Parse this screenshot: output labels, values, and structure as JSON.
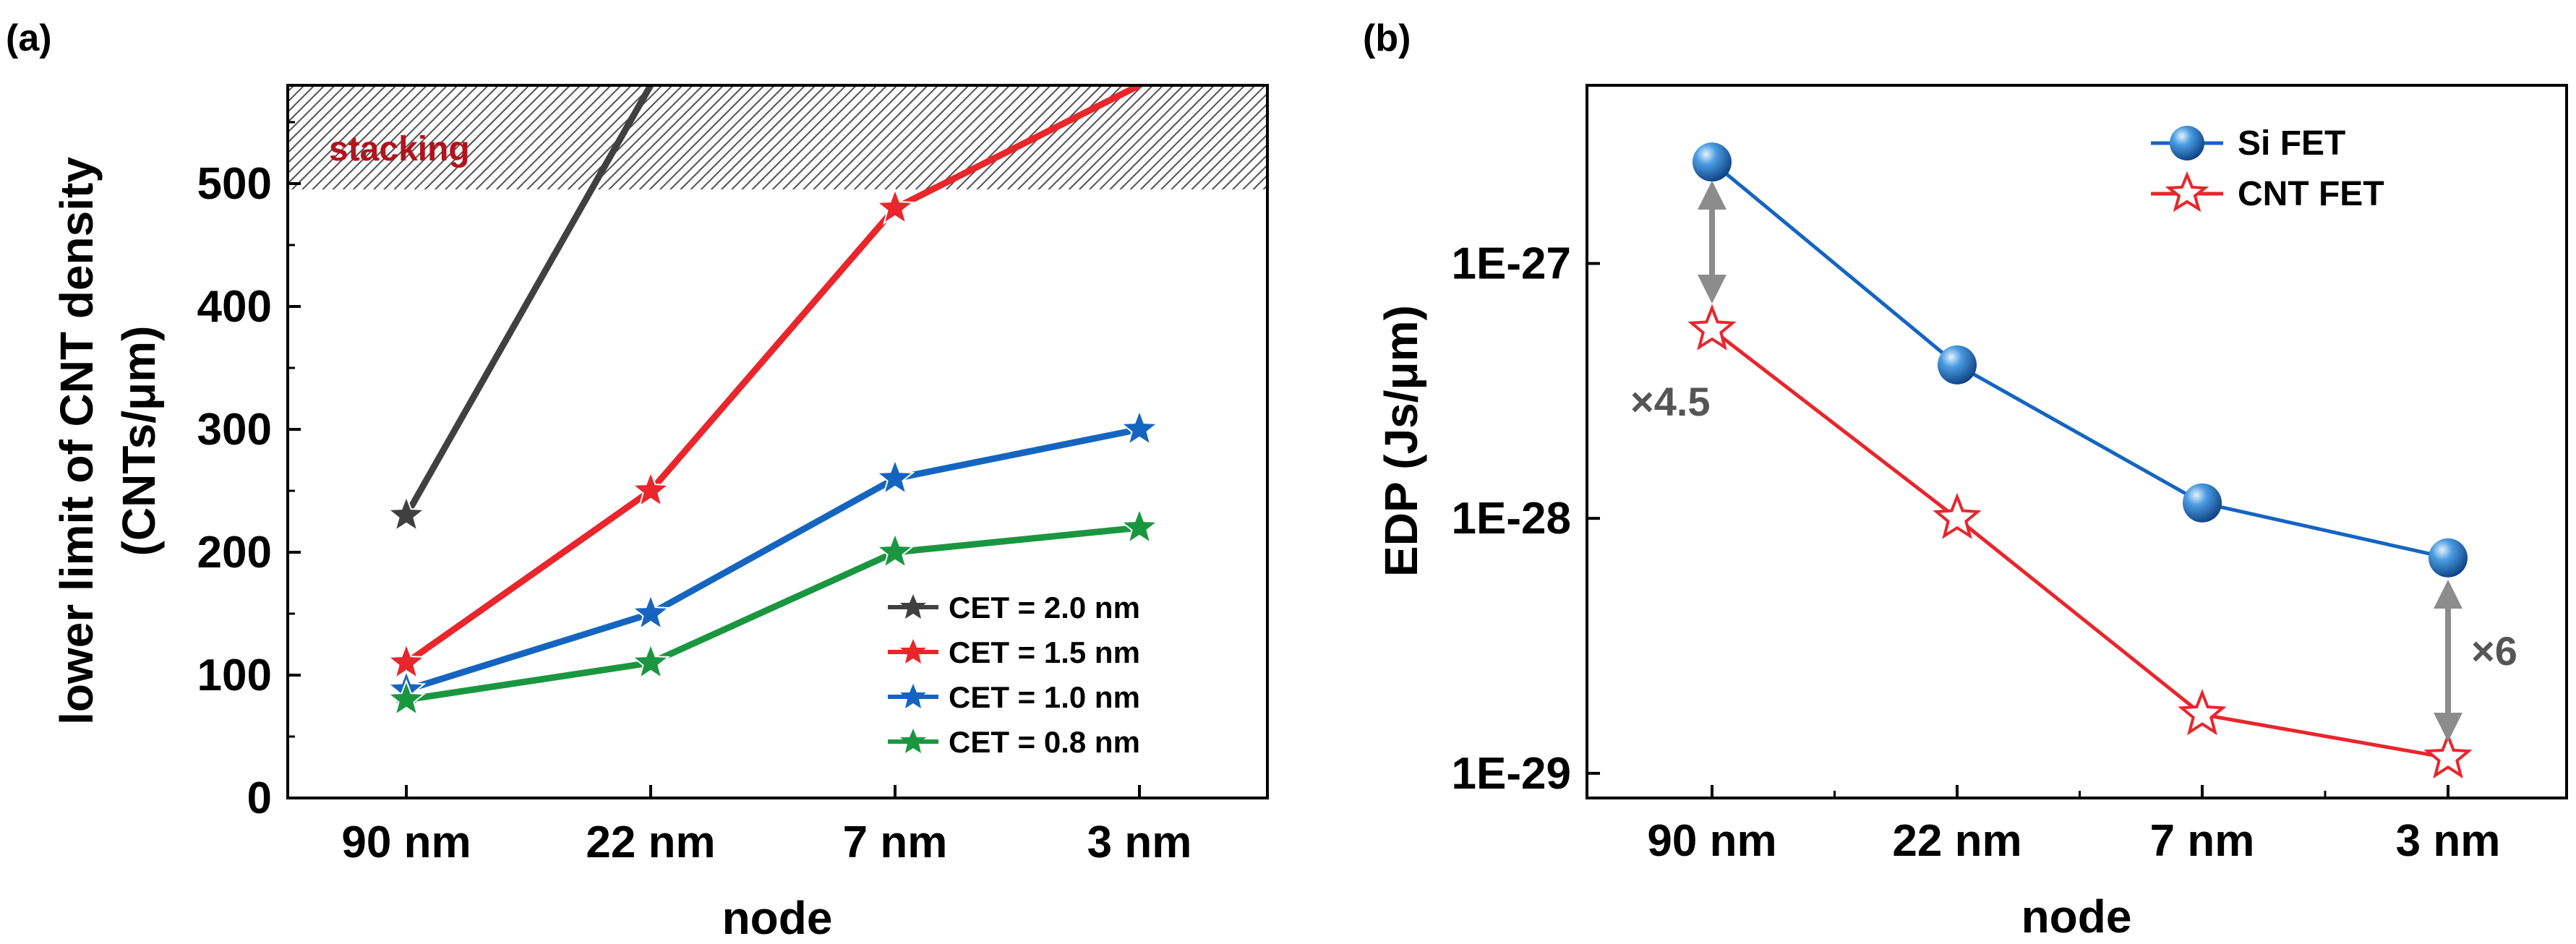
{
  "chart_data": [
    {
      "panel": "(a)",
      "type": "line",
      "xlabel": "node",
      "ylabel_line1": "lower limit of CNT density",
      "ylabel_line2": "(CNTs/μm)",
      "categories": [
        "90 nm",
        "22 nm",
        "7 nm",
        "3 nm"
      ],
      "ylim": [
        0,
        580
      ],
      "yticks": [
        0,
        100,
        200,
        300,
        400,
        500
      ],
      "ytick_labels": [
        "0",
        "100",
        "200",
        "300",
        "400",
        "500"
      ],
      "shaded_region": {
        "label": "stacking",
        "from": 495,
        "to": 580
      },
      "legend_position": "lower-right",
      "series": [
        {
          "name": "CET = 2.0 nm",
          "color": "#404040",
          "values": [
            230,
            580,
            null,
            null
          ]
        },
        {
          "name": "CET = 1.5 nm",
          "color": "#e8262b",
          "values": [
            110,
            250,
            480,
            580
          ]
        },
        {
          "name": "CET = 1.0 nm",
          "color": "#1565c0",
          "values": [
            88,
            150,
            260,
            300
          ]
        },
        {
          "name": "CET = 0.8 nm",
          "color": "#1a9641",
          "values": [
            80,
            110,
            200,
            220
          ]
        }
      ]
    },
    {
      "panel": "(b)",
      "type": "line",
      "yscale": "log",
      "xlabel": "node",
      "ylabel": "EDP (Js/μm)",
      "categories": [
        "90 nm",
        "22 nm",
        "7 nm",
        "3 nm"
      ],
      "ylim": [
        8e-30,
        5e-27
      ],
      "yticks": [
        1e-29,
        1e-28,
        1e-27
      ],
      "ytick_labels": [
        "1E-29",
        "1E-28",
        "1E-27"
      ],
      "legend_position": "top-right",
      "series": [
        {
          "name": "Si FET",
          "color": "#1565c0",
          "marker": "sphere",
          "values": [
            2.5e-27,
            4e-28,
            1.15e-28,
            7e-29
          ]
        },
        {
          "name": "CNT FET",
          "color": "#e8262b",
          "marker": "open-star",
          "values": [
            5.5e-28,
            1e-28,
            1.7e-29,
            1.15e-29
          ]
        }
      ],
      "annotations": [
        {
          "text": "×4.5",
          "category": "90 nm"
        },
        {
          "text": "×6",
          "category": "3 nm"
        }
      ]
    }
  ]
}
